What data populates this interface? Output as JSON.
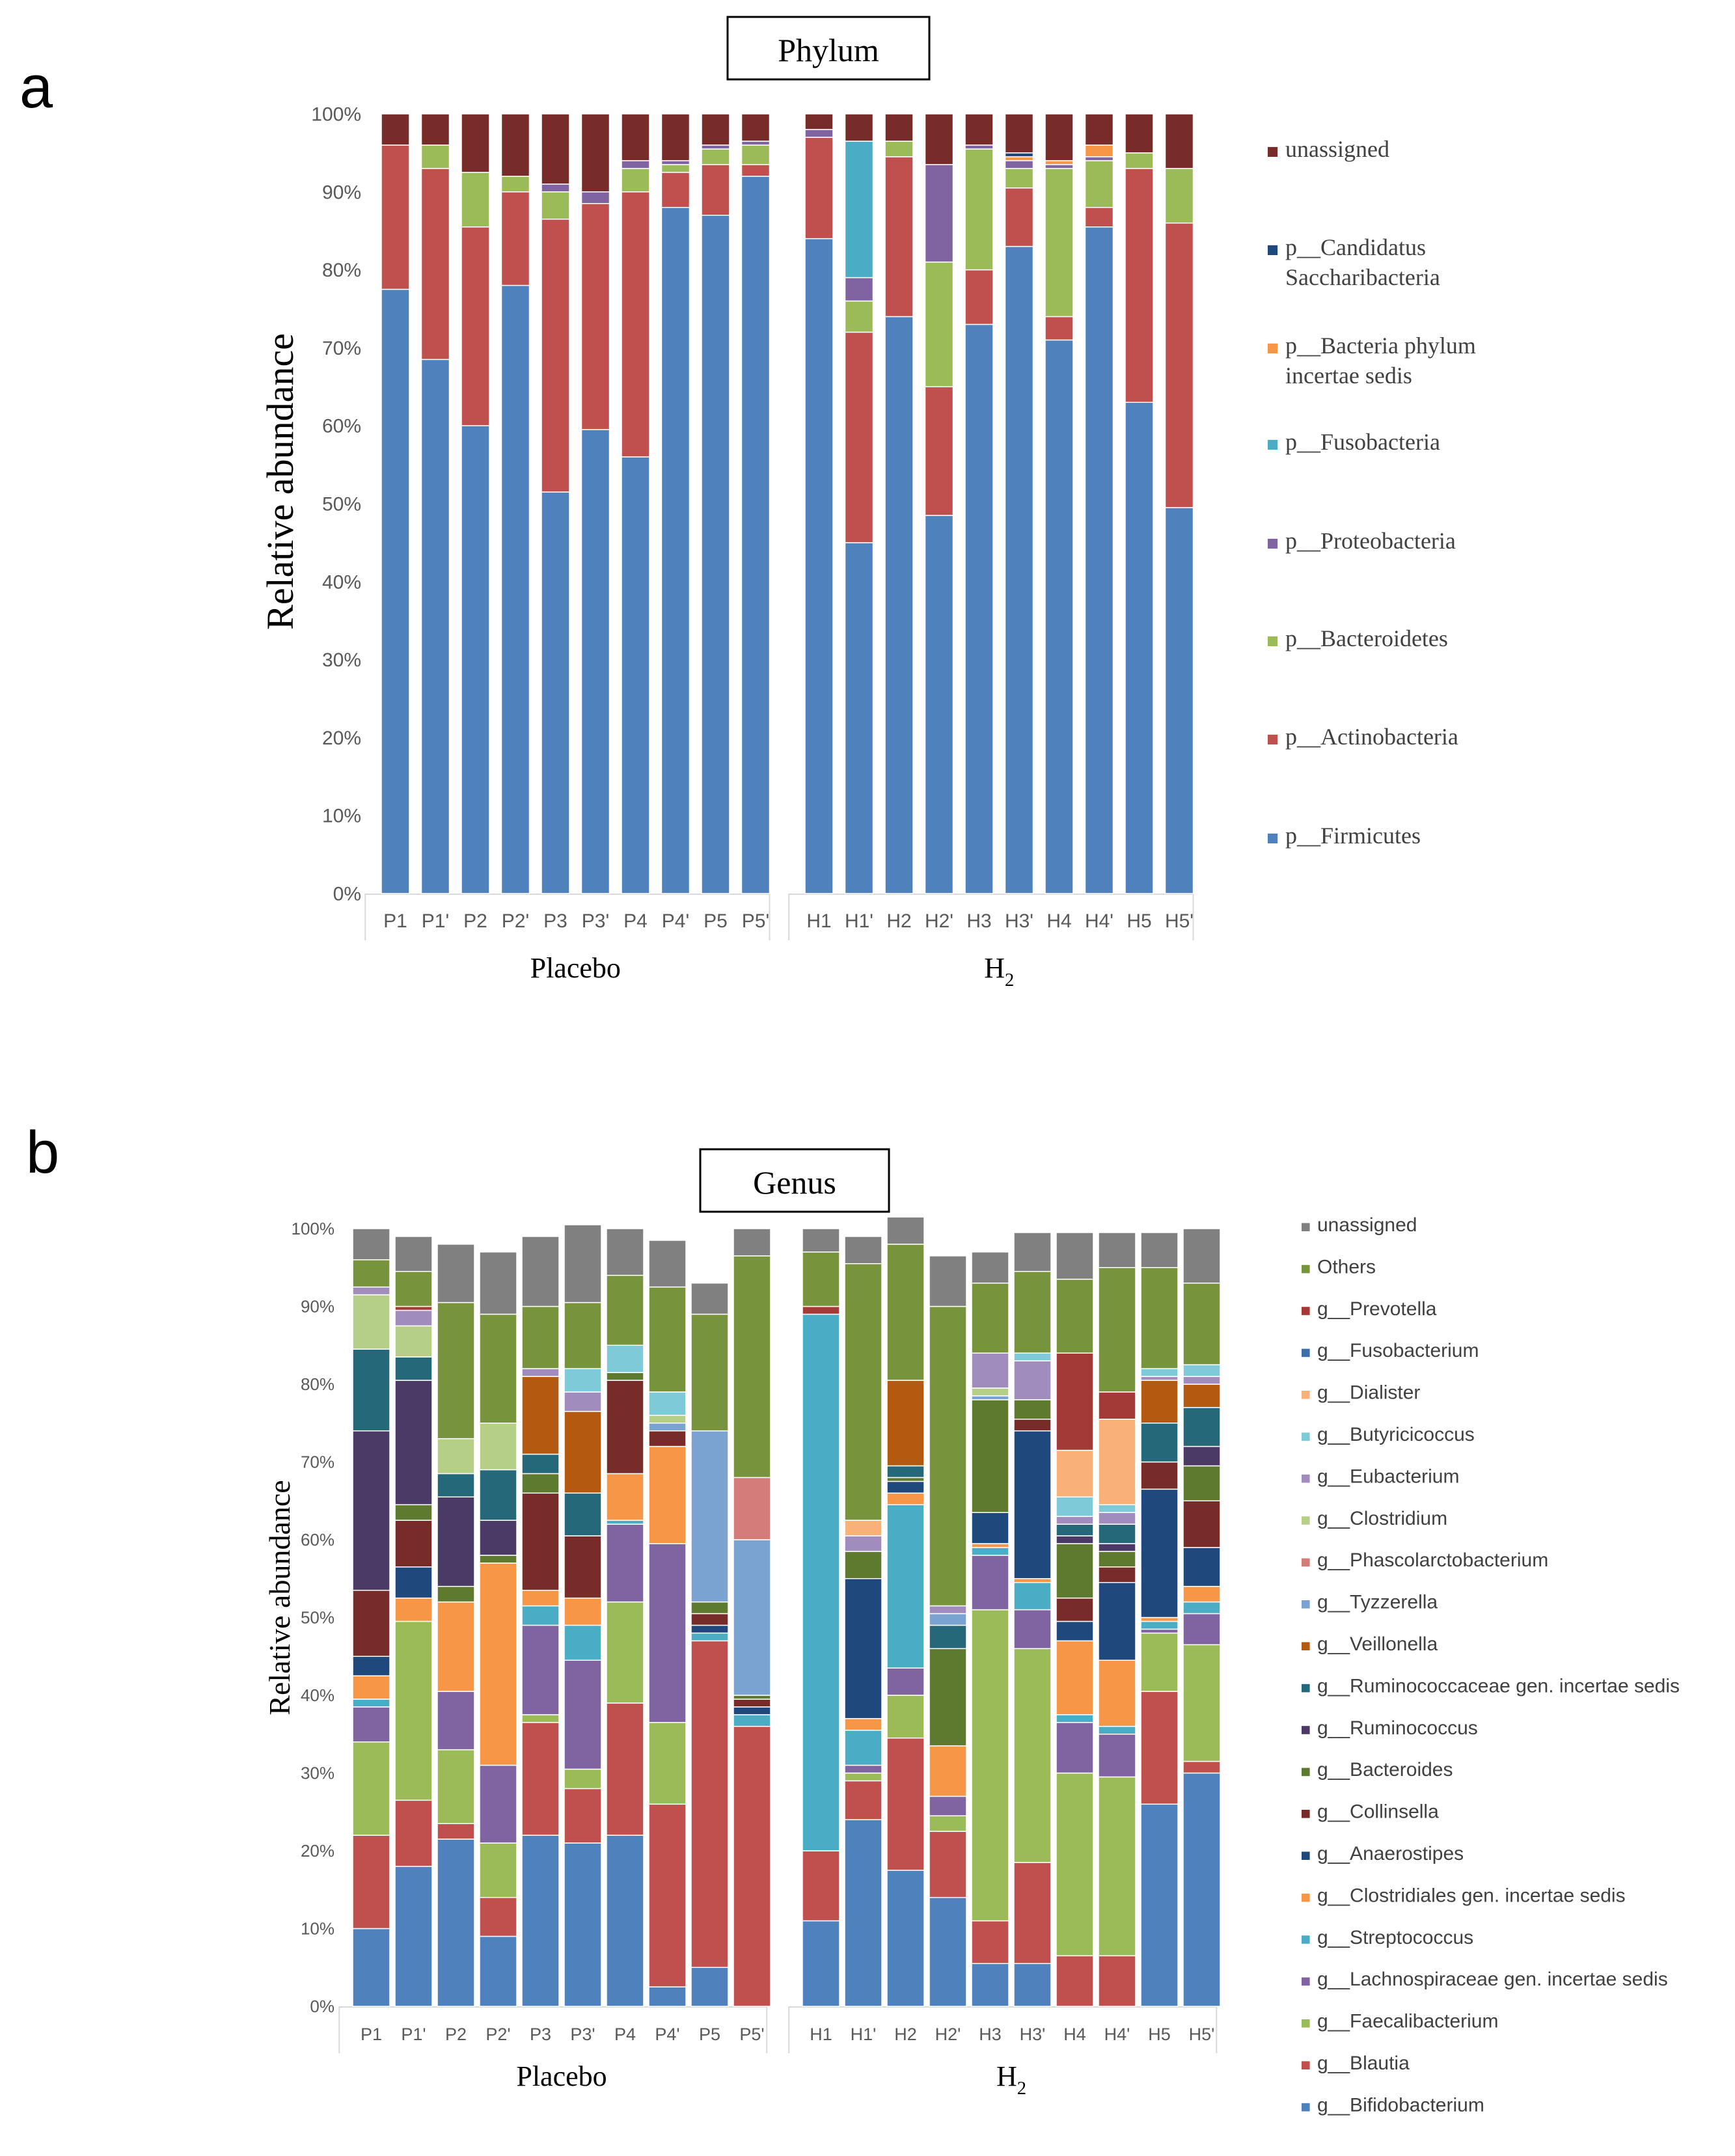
{
  "panels": {
    "a": {
      "letter": "a",
      "title": "Phylum",
      "ylabel": "Relative abundance"
    },
    "b": {
      "letter": "b",
      "title": "Genus",
      "ylabel": "Relative abundance"
    }
  },
  "chart_data": [
    {
      "type": "bar",
      "stacked": true,
      "normalized": true,
      "title": "Phylum",
      "ylabel": "Relative abundance",
      "xlabel": "",
      "ylim": [
        0,
        100
      ],
      "yticks": [
        "0%",
        "10%",
        "20%",
        "30%",
        "40%",
        "50%",
        "60%",
        "70%",
        "80%",
        "90%",
        "100%"
      ],
      "groups": [
        {
          "label": "Placebo",
          "categories": [
            "P1",
            "P1'",
            "P2",
            "P2'",
            "P3",
            "P3'",
            "P4",
            "P4'",
            "P5",
            "P5'"
          ]
        },
        {
          "label": "H2",
          "label_main": "H",
          "label_sub": "2",
          "categories": [
            "H1",
            "H1'",
            "H2",
            "H2'",
            "H3",
            "H3'",
            "H4",
            "H4'",
            "H5",
            "H5'"
          ]
        }
      ],
      "categories": [
        "P1",
        "P1'",
        "P2",
        "P2'",
        "P3",
        "P3'",
        "P4",
        "P4'",
        "P5",
        "P5'",
        "H1",
        "H1'",
        "H2",
        "H2'",
        "H3",
        "H3'",
        "H4",
        "H4'",
        "H5",
        "H5'"
      ],
      "legend": {
        "position": "right",
        "order": "top-to-bottom"
      },
      "series": [
        {
          "name": "p__Firmicutes",
          "color": "#4F81BD",
          "values": [
            77.5,
            68.5,
            60,
            78,
            51.5,
            59.5,
            56,
            88,
            87,
            92,
            84,
            45,
            74,
            48.5,
            73,
            83,
            71,
            85.5,
            63,
            49.5
          ]
        },
        {
          "name": "p__Actinobacteria",
          "color": "#C0504D",
          "values": [
            18.5,
            24.5,
            25.5,
            12,
            35,
            29,
            34,
            4.5,
            6.5,
            1.5,
            13,
            27,
            20.5,
            16.5,
            7,
            7.5,
            3,
            2.5,
            30,
            36.5
          ]
        },
        {
          "name": "p__Bacteroidetes",
          "color": "#9BBB59",
          "values": [
            0,
            3,
            7,
            2,
            3.5,
            0,
            3,
            1,
            2,
            2.5,
            0,
            4,
            2,
            16,
            15.5,
            2.5,
            19,
            6,
            2,
            7
          ]
        },
        {
          "name": "p__Proteobacteria",
          "color": "#8064A2",
          "values": [
            0,
            0,
            0,
            0,
            1,
            1.5,
            1,
            0.5,
            0.5,
            0.5,
            1,
            3,
            0,
            12.5,
            0.5,
            1,
            0.5,
            0.5,
            0,
            0
          ]
        },
        {
          "name": "p__Fusobacteria",
          "color": "#4BACC6",
          "values": [
            0,
            0,
            0,
            0,
            0,
            0,
            0,
            0,
            0,
            0,
            0,
            17.5,
            0,
            0,
            0,
            0,
            0,
            0,
            0,
            0
          ]
        },
        {
          "name": "p__Bacteria phylum incertae sedis",
          "color": "#F79646",
          "values": [
            0,
            0,
            0,
            0,
            0,
            0,
            0,
            0,
            0,
            0,
            0,
            0,
            0,
            0,
            0,
            0.5,
            0.5,
            1.5,
            0,
            0
          ]
        },
        {
          "name": "p__Candidatus Saccharibacteria",
          "color": "#1F497D",
          "values": [
            0,
            0,
            0,
            0,
            0,
            0,
            0,
            0,
            0,
            0,
            0,
            0,
            0,
            0,
            0,
            0.5,
            0,
            0,
            0,
            0
          ]
        },
        {
          "name": "unassigned",
          "color": "#772C2A",
          "values": [
            4,
            4,
            7.5,
            8,
            9,
            10,
            6,
            6,
            4,
            3.5,
            2,
            3.5,
            3.5,
            6.5,
            4,
            5,
            6,
            4,
            5,
            7
          ]
        }
      ]
    },
    {
      "type": "bar",
      "stacked": true,
      "normalized": true,
      "title": "Genus",
      "ylabel": "Relative abundance",
      "xlabel": "",
      "ylim": [
        0,
        100
      ],
      "yticks": [
        "0%",
        "10%",
        "20%",
        "30%",
        "40%",
        "50%",
        "60%",
        "70%",
        "80%",
        "90%",
        "100%"
      ],
      "groups": [
        {
          "label": "Placebo",
          "categories": [
            "P1",
            "P1'",
            "P2",
            "P2'",
            "P3",
            "P3'",
            "P4",
            "P4'",
            "P5",
            "P5'"
          ]
        },
        {
          "label": "H2",
          "label_main": "H",
          "label_sub": "2",
          "categories": [
            "H1",
            "H1'",
            "H2",
            "H2'",
            "H3",
            "H3'",
            "H4",
            "H4'",
            "H5",
            "H5'"
          ]
        }
      ],
      "categories": [
        "P1",
        "P1'",
        "P2",
        "P2'",
        "P3",
        "P3'",
        "P4",
        "P4'",
        "P5",
        "P5'",
        "H1",
        "H1'",
        "H2",
        "H2'",
        "H3",
        "H3'",
        "H4",
        "H4'",
        "H5",
        "H5'"
      ],
      "legend": {
        "position": "right",
        "order": "top-to-bottom"
      },
      "series": [
        {
          "name": "g__Bifidobacterium",
          "color": "#4F81BD",
          "values": [
            10,
            18,
            21.5,
            9,
            22,
            21,
            22,
            2.5,
            5,
            0,
            11,
            24,
            17.5,
            14,
            5.5,
            5.5,
            0,
            0,
            26,
            30
          ]
        },
        {
          "name": "g__Blautia",
          "color": "#C0504D",
          "values": [
            12,
            8.5,
            2,
            5,
            14.5,
            7,
            17,
            23.5,
            42,
            36,
            9,
            5,
            17,
            8.5,
            5.5,
            13,
            6.5,
            6.5,
            14.5,
            1.5
          ]
        },
        {
          "name": "g__Faecalibacterium",
          "color": "#9BBB59",
          "values": [
            12,
            23,
            9.5,
            7,
            1,
            2.5,
            13,
            10.5,
            0,
            0,
            0,
            1,
            5.5,
            2,
            40,
            27.5,
            23.5,
            23,
            7.5,
            15
          ]
        },
        {
          "name": "g__Lachnospiraceae gen. incertae sedis",
          "color": "#8064A2",
          "values": [
            4.5,
            0,
            7.5,
            10,
            11.5,
            14,
            10,
            23,
            0,
            0,
            0,
            1,
            3.5,
            2.5,
            7,
            5,
            6.5,
            5.5,
            0.5,
            4
          ]
        },
        {
          "name": "g__Streptococcus",
          "color": "#4BACC6",
          "values": [
            1,
            0,
            0,
            0,
            2.5,
            4.5,
            0.5,
            0,
            1,
            1.5,
            69,
            4.5,
            21,
            0,
            1,
            3.5,
            1,
            1,
            1,
            1.5
          ]
        },
        {
          "name": "g__Clostridiales gen. incertae sedis",
          "color": "#F79646",
          "values": [
            3,
            3,
            11.5,
            26,
            2,
            3.5,
            6,
            12.5,
            0,
            0,
            0,
            1.5,
            1.5,
            6.5,
            0.5,
            0.5,
            9.5,
            8.5,
            0.5,
            2
          ]
        },
        {
          "name": "g__Anaerostipes",
          "color": "#1F497D",
          "values": [
            2.5,
            4,
            0,
            0,
            0,
            0,
            0,
            0,
            1,
            1,
            0,
            18,
            1.5,
            0,
            4,
            19,
            2.5,
            10,
            16.5,
            5
          ]
        },
        {
          "name": "g__Collinsella",
          "color": "#772C2A",
          "values": [
            8.5,
            6,
            0,
            0,
            12.5,
            8,
            12,
            2,
            1.5,
            1,
            0,
            0,
            0,
            0,
            0,
            1.5,
            3,
            2,
            3.5,
            6
          ]
        },
        {
          "name": "g__Bacteroides",
          "color": "#5E7A2E",
          "values": [
            0,
            2,
            2,
            1,
            2.5,
            0,
            1,
            0,
            1.5,
            0.5,
            0,
            3.5,
            0.5,
            12.5,
            14.5,
            2.5,
            7,
            2,
            0,
            4.5
          ]
        },
        {
          "name": "g__Ruminococcus",
          "color": "#4C3A66",
          "values": [
            20.5,
            16,
            11.5,
            4.5,
            0,
            0,
            0,
            0,
            0,
            0,
            0,
            0,
            0,
            0,
            0,
            0,
            1,
            1,
            0,
            2.5
          ]
        },
        {
          "name": "g__Ruminococcaceae gen. incertae sedis",
          "color": "#25687A",
          "values": [
            10.5,
            3,
            3,
            6.5,
            2.5,
            5.5,
            0,
            0,
            0,
            0,
            0,
            0,
            1.5,
            3,
            0,
            0,
            1.5,
            2.5,
            5,
            5
          ]
        },
        {
          "name": "g__Veillonella",
          "color": "#B45A10",
          "values": [
            0,
            0,
            0,
            0,
            10,
            10.5,
            0,
            0,
            0,
            0,
            0,
            0,
            11,
            0,
            0,
            0,
            0,
            0,
            5.5,
            3
          ]
        },
        {
          "name": "g__Tyzzerella",
          "color": "#7BA3D1",
          "values": [
            0,
            0,
            0,
            0,
            0,
            0,
            0,
            1,
            22,
            20,
            0,
            0,
            0,
            1.5,
            0.5,
            0,
            0,
            0,
            0,
            0
          ]
        },
        {
          "name": "g__Phascolarctobacterium",
          "color": "#D37C79",
          "values": [
            0,
            0,
            0,
            0,
            0,
            0,
            0,
            0,
            0,
            8,
            0,
            0,
            0,
            0,
            0,
            0,
            0,
            0,
            0,
            0
          ]
        },
        {
          "name": "g__Clostridium",
          "color": "#B5CF86",
          "values": [
            7,
            4,
            4.5,
            6,
            0,
            0,
            0,
            1,
            0,
            0,
            0,
            0,
            0,
            0,
            1,
            0,
            0,
            0,
            0,
            0
          ]
        },
        {
          "name": "g__Eubacterium",
          "color": "#A08DBE",
          "values": [
            1,
            2,
            0,
            0,
            1,
            2.5,
            0,
            0,
            0,
            0,
            0,
            2,
            0,
            1,
            4.5,
            5,
            1,
            1.5,
            0.5,
            1
          ]
        },
        {
          "name": "g__Butyricicoccus",
          "color": "#7FCAD9",
          "values": [
            0,
            0,
            0,
            0,
            0,
            3,
            3.5,
            3,
            0,
            0,
            0,
            0,
            0,
            0,
            0,
            1,
            2.5,
            1,
            1,
            1.5
          ]
        },
        {
          "name": "g__Dialister",
          "color": "#F9B177",
          "values": [
            0,
            0,
            0,
            0,
            0,
            0,
            0,
            0,
            0,
            0,
            0,
            2,
            0,
            0,
            0,
            0,
            6,
            11,
            0,
            0
          ]
        },
        {
          "name": "g__Fusobacterium",
          "color": "#3E6FA8",
          "values": [
            0,
            0,
            0,
            0,
            0,
            0,
            0,
            0,
            0,
            0,
            0,
            0,
            0,
            0,
            0,
            0,
            0,
            0,
            0,
            0
          ]
        },
        {
          "name": "g__Prevotella",
          "color": "#A33A37",
          "values": [
            0,
            0.5,
            0,
            0,
            0,
            0,
            0,
            0,
            0,
            0,
            1,
            0,
            0,
            0,
            0,
            0,
            12.5,
            3.5,
            0,
            0
          ]
        },
        {
          "name": "Others",
          "color": "#77933C",
          "values": [
            3.5,
            4.5,
            17.5,
            14,
            8,
            8.5,
            9,
            13.5,
            15,
            28.5,
            7,
            33,
            17.5,
            38.5,
            9,
            10.5,
            9.5,
            16,
            13,
            10.5
          ]
        },
        {
          "name": "unassigned",
          "color": "#808080",
          "values": [
            4,
            4.5,
            7.5,
            8,
            9,
            10,
            6,
            6,
            4,
            3.5,
            3,
            3.5,
            3.5,
            6.5,
            4,
            5,
            6,
            4.5,
            4.5,
            7
          ]
        }
      ]
    }
  ]
}
